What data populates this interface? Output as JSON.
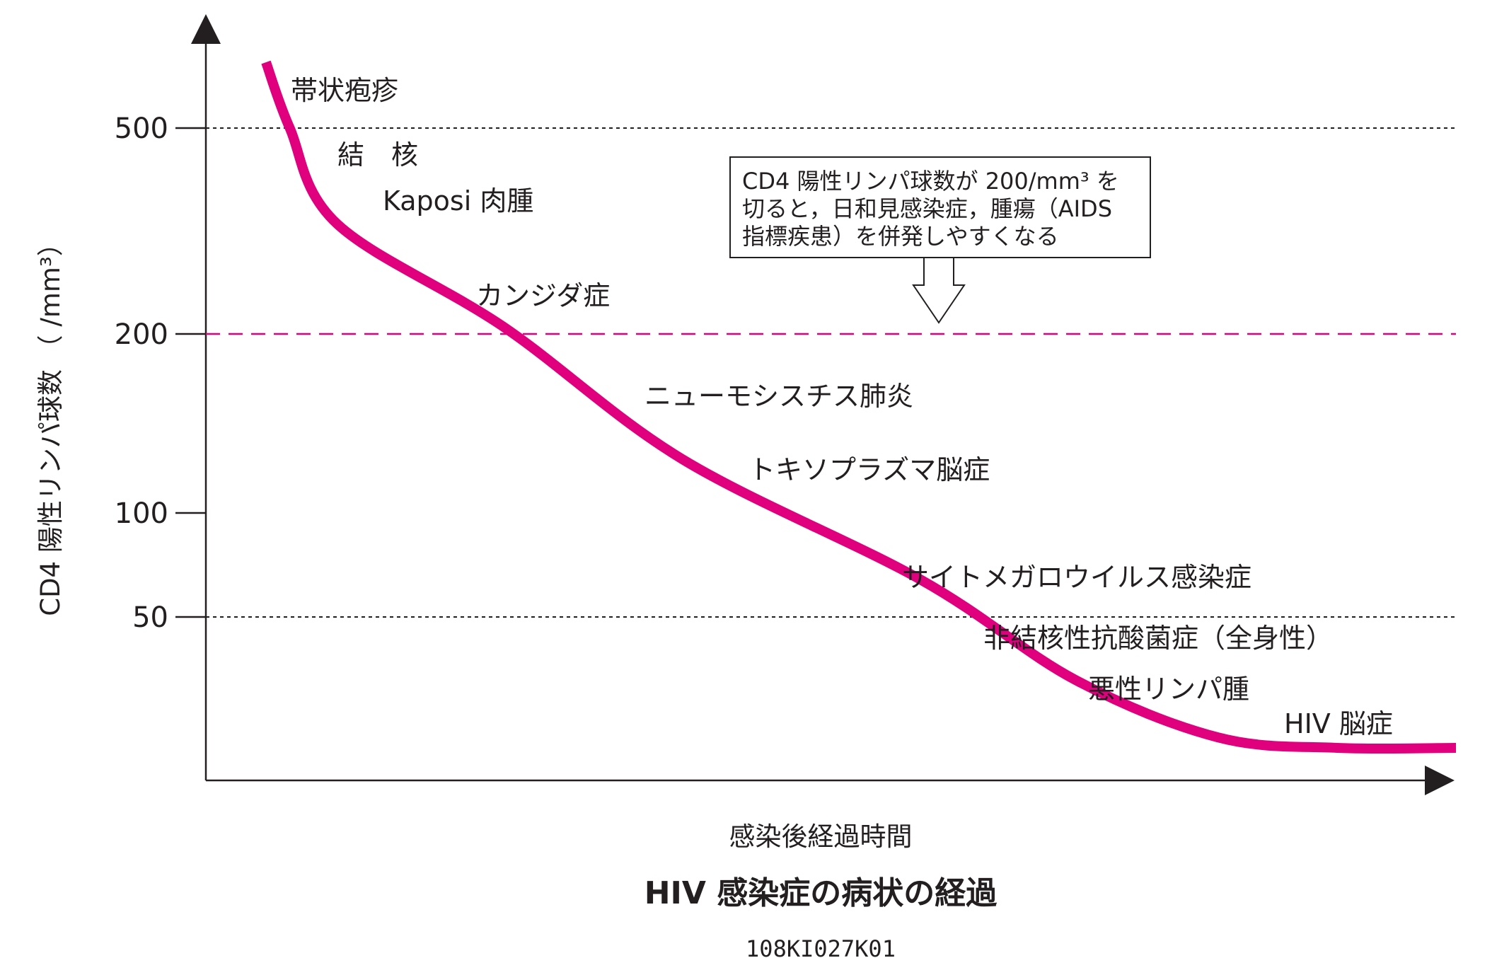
{
  "chart_data": {
    "type": "line",
    "title": "HIV 感染症の病状の経過",
    "code": "108KI027K01",
    "xlabel": "感染後経過時間",
    "ylabel": "CD4 陽性リンパ球数 （ /mm³）",
    "y_ticks": [
      "500",
      "200",
      "100",
      "50"
    ],
    "y_tick_values": [
      500,
      200,
      100,
      50
    ],
    "reference_lines": [
      {
        "value": 500,
        "style": "dotted",
        "color": "#231f20"
      },
      {
        "value": 200,
        "style": "dashed",
        "color": "#e0007e"
      },
      {
        "value": 50,
        "style": "dotted",
        "color": "#231f20"
      }
    ],
    "series": [
      {
        "color": "#e0007e",
        "points": [
          {
            "t": 0.0,
            "y": 640
          },
          {
            "t": 0.02,
            "y": 500
          },
          {
            "t": 0.06,
            "y": 360
          },
          {
            "t": 0.2,
            "y": 210
          },
          {
            "t": 0.35,
            "y": 130
          },
          {
            "t": 0.55,
            "y": 68
          },
          {
            "t": 0.68,
            "y": 38
          },
          {
            "t": 0.8,
            "y": 27
          },
          {
            "t": 0.9,
            "y": 25
          },
          {
            "t": 1.0,
            "y": 25
          }
        ]
      }
    ],
    "diseases": [
      "帯状疱疹",
      "結　核",
      "Kaposi 肉腫",
      "カンジダ症",
      "ニューモシスチス肺炎",
      "トキソプラズマ脳症",
      "サイトメガロウイルス感染症",
      "非結核性抗酸菌症（全身性）",
      "悪性リンパ腫",
      "HIV 脳症"
    ],
    "callout": {
      "lines": [
        "CD4 陽性リンパ球数が 200/mm³ を",
        "切ると，日和見感染症，腫瘍（AIDS",
        "指標疾患）を併発しやすくなる"
      ]
    },
    "colors": {
      "curve": "#e0007e",
      "ink": "#231f20",
      "threshold": "#e0007e"
    }
  }
}
